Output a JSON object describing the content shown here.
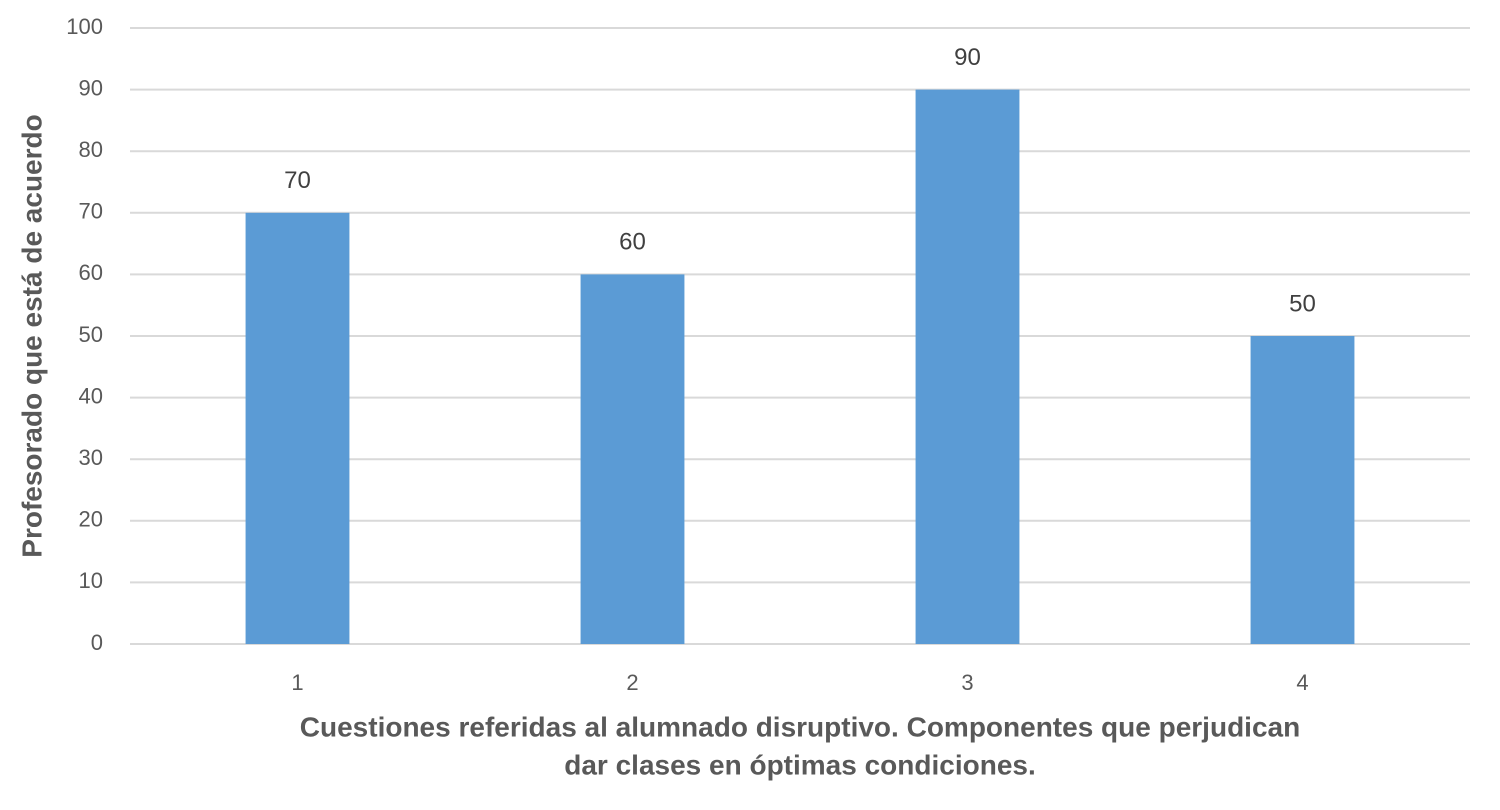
{
  "chart_data": {
    "type": "bar",
    "y_label": "Profesorado que está de acuerdo",
    "x_label": [
      "Cuestiones referidas al alumnado disruptivo. Componentes que perjudican",
      "dar clases en óptimas condiciones."
    ],
    "categories": [
      "1",
      "2",
      "3",
      "4"
    ],
    "values": [
      70,
      60,
      90,
      50
    ],
    "color": "#5b9bd5",
    "ylim": [
      0,
      100
    ],
    "yticks": [
      0,
      10,
      20,
      30,
      40,
      50,
      60,
      70,
      80,
      90,
      100
    ],
    "grid": true,
    "data_labels": true
  }
}
